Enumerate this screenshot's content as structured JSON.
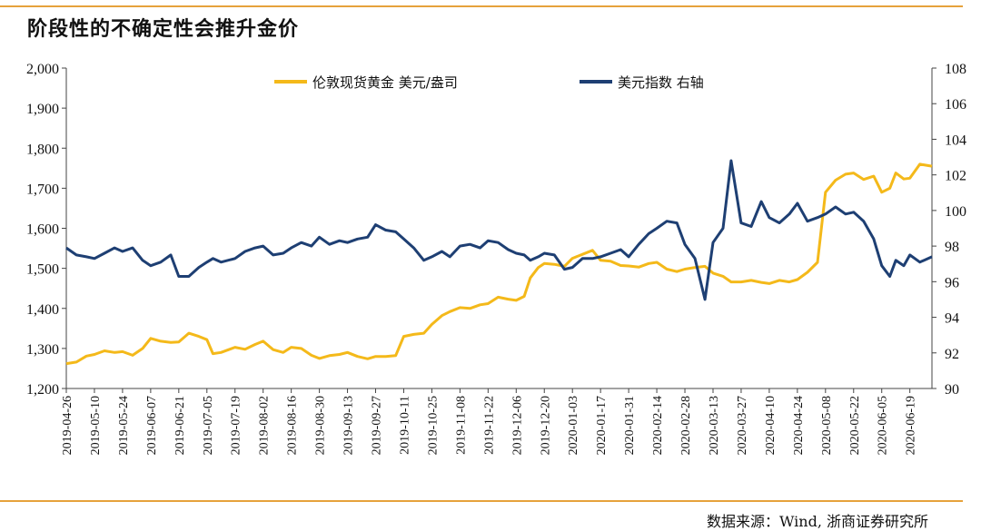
{
  "title": "阶段性的不确定性会推升金价",
  "source": "数据来源：Wind, 浙商证券研究所",
  "colors": {
    "gold": "#f4b91a",
    "usd": "#1e3f73",
    "accent": "#e6a23c"
  },
  "chart_data": {
    "type": "line",
    "grid": false,
    "legend_position": "top",
    "x_ticks": [
      "2019-04-26",
      "2019-05-10",
      "2019-05-24",
      "2019-06-07",
      "2019-06-21",
      "2019-07-05",
      "2019-07-19",
      "2019-08-02",
      "2019-08-16",
      "2019-08-30",
      "2019-09-13",
      "2019-09-27",
      "2019-10-11",
      "2019-10-25",
      "2019-11-08",
      "2019-11-22",
      "2019-12-06",
      "2019-12-20",
      "2020-01-03",
      "2020-01-17",
      "2020-01-31",
      "2020-02-14",
      "2020-02-28",
      "2020-03-13",
      "2020-03-27",
      "2020-04-10",
      "2020-04-24",
      "2020-05-08",
      "2020-05-22",
      "2020-06-05",
      "2020-06-19"
    ],
    "x_range": [
      "2019-04-26",
      "2020-06-30"
    ],
    "y_left": {
      "ylim": [
        1200,
        2000
      ],
      "ticks": [
        "1,200",
        "1,300",
        "1,400",
        "1,500",
        "1,600",
        "1,700",
        "1,800",
        "1,900",
        "2,000"
      ]
    },
    "y_right": {
      "ylim": [
        90,
        108
      ],
      "ticks": [
        "90",
        "92",
        "94",
        "96",
        "98",
        "100",
        "102",
        "104",
        "106",
        "108"
      ]
    },
    "series": [
      {
        "name": "伦敦现货黄金 美元/盎司",
        "axis": "left",
        "color": "#f4b91a",
        "points": [
          [
            "2019-04-26",
            1262
          ],
          [
            "2019-05-01",
            1266
          ],
          [
            "2019-05-06",
            1281
          ],
          [
            "2019-05-10",
            1285
          ],
          [
            "2019-05-15",
            1294
          ],
          [
            "2019-05-20",
            1290
          ],
          [
            "2019-05-24",
            1292
          ],
          [
            "2019-05-29",
            1283
          ],
          [
            "2019-06-03",
            1300
          ],
          [
            "2019-06-07",
            1325
          ],
          [
            "2019-06-12",
            1318
          ],
          [
            "2019-06-17",
            1315
          ],
          [
            "2019-06-21",
            1316
          ],
          [
            "2019-06-26",
            1338
          ],
          [
            "2019-07-01",
            1330
          ],
          [
            "2019-07-05",
            1322
          ],
          [
            "2019-07-08",
            1287
          ],
          [
            "2019-07-12",
            1290
          ],
          [
            "2019-07-19",
            1303
          ],
          [
            "2019-07-24",
            1298
          ],
          [
            "2019-07-29",
            1310
          ],
          [
            "2019-08-02",
            1318
          ],
          [
            "2019-08-07",
            1297
          ],
          [
            "2019-08-12",
            1290
          ],
          [
            "2019-08-16",
            1303
          ],
          [
            "2019-08-21",
            1300
          ],
          [
            "2019-08-26",
            1283
          ],
          [
            "2019-08-30",
            1275
          ],
          [
            "2019-09-04",
            1282
          ],
          [
            "2019-09-09",
            1285
          ],
          [
            "2019-09-13",
            1290
          ],
          [
            "2019-09-18",
            1280
          ],
          [
            "2019-09-23",
            1274
          ],
          [
            "2019-09-27",
            1280
          ],
          [
            "2019-10-02",
            1280
          ],
          [
            "2019-10-07",
            1282
          ],
          [
            "2019-10-11",
            1330
          ],
          [
            "2019-10-16",
            1335
          ],
          [
            "2019-10-21",
            1338
          ],
          [
            "2019-10-25",
            1360
          ],
          [
            "2019-10-30",
            1382
          ],
          [
            "2019-11-03",
            1392
          ],
          [
            "2019-11-08",
            1402
          ],
          [
            "2019-11-13",
            1400
          ],
          [
            "2019-11-18",
            1409
          ],
          [
            "2019-11-22",
            1412
          ],
          [
            "2019-11-27",
            1428
          ],
          [
            "2019-12-02",
            1423
          ],
          [
            "2019-12-06",
            1420
          ],
          [
            "2019-12-10",
            1430
          ],
          [
            "2019-12-13",
            1476
          ],
          [
            "2019-12-17",
            1502
          ],
          [
            "2019-12-20",
            1512
          ],
          [
            "2019-12-25",
            1510
          ],
          [
            "2019-12-30",
            1505
          ],
          [
            "2020-01-03",
            1525
          ],
          [
            "2020-01-08",
            1535
          ],
          [
            "2020-01-13",
            1545
          ],
          [
            "2020-01-17",
            1520
          ],
          [
            "2020-01-22",
            1518
          ],
          [
            "2020-01-27",
            1507
          ],
          [
            "2020-01-31",
            1506
          ],
          [
            "2020-02-05",
            1503
          ],
          [
            "2020-02-10",
            1512
          ],
          [
            "2020-02-14",
            1515
          ],
          [
            "2020-02-19",
            1498
          ],
          [
            "2020-02-24",
            1492
          ],
          [
            "2020-02-28",
            1498
          ],
          [
            "2020-03-04",
            1502
          ],
          [
            "2020-03-09",
            1505
          ],
          [
            "2020-03-13",
            1488
          ],
          [
            "2020-03-18",
            1480
          ],
          [
            "2020-03-22",
            1466
          ],
          [
            "2020-03-27",
            1466
          ],
          [
            "2020-04-01",
            1470
          ],
          [
            "2020-04-06",
            1465
          ],
          [
            "2020-04-10",
            1462
          ],
          [
            "2020-04-15",
            1470
          ],
          [
            "2020-04-20",
            1466
          ],
          [
            "2020-04-24",
            1472
          ],
          [
            "2020-04-29",
            1490
          ],
          [
            "2020-05-04",
            1515
          ],
          [
            "2020-05-08",
            1690
          ],
          [
            "2020-05-13",
            1720
          ],
          [
            "2020-05-18",
            1735
          ],
          [
            "2020-05-22",
            1738
          ],
          [
            "2020-05-27",
            1722
          ],
          [
            "2020-06-01",
            1730
          ],
          [
            "2020-06-05",
            1690
          ],
          [
            "2020-06-09",
            1700
          ],
          [
            "2020-06-12",
            1738
          ],
          [
            "2020-06-16",
            1723
          ],
          [
            "2020-06-19",
            1725
          ],
          [
            "2020-06-24",
            1760
          ],
          [
            "2020-06-30",
            1755
          ]
        ]
      },
      {
        "name": "美元指数 右轴",
        "axis": "right",
        "color": "#1e3f73",
        "points": [
          [
            "2019-04-26",
            97.9
          ],
          [
            "2019-05-01",
            97.5
          ],
          [
            "2019-05-06",
            97.4
          ],
          [
            "2019-05-10",
            97.3
          ],
          [
            "2019-05-15",
            97.6
          ],
          [
            "2019-05-20",
            97.9
          ],
          [
            "2019-05-24",
            97.7
          ],
          [
            "2019-05-29",
            97.9
          ],
          [
            "2019-06-03",
            97.2
          ],
          [
            "2019-06-07",
            96.9
          ],
          [
            "2019-06-12",
            97.1
          ],
          [
            "2019-06-17",
            97.5
          ],
          [
            "2019-06-21",
            96.3
          ],
          [
            "2019-06-26",
            96.3
          ],
          [
            "2019-07-01",
            96.8
          ],
          [
            "2019-07-05",
            97.1
          ],
          [
            "2019-07-08",
            97.3
          ],
          [
            "2019-07-12",
            97.1
          ],
          [
            "2019-07-19",
            97.3
          ],
          [
            "2019-07-24",
            97.7
          ],
          [
            "2019-07-29",
            97.9
          ],
          [
            "2019-08-02",
            98.0
          ],
          [
            "2019-08-07",
            97.5
          ],
          [
            "2019-08-12",
            97.6
          ],
          [
            "2019-08-16",
            97.9
          ],
          [
            "2019-08-21",
            98.2
          ],
          [
            "2019-08-26",
            98.0
          ],
          [
            "2019-08-30",
            98.5
          ],
          [
            "2019-09-04",
            98.1
          ],
          [
            "2019-09-09",
            98.3
          ],
          [
            "2019-09-13",
            98.2
          ],
          [
            "2019-09-18",
            98.4
          ],
          [
            "2019-09-23",
            98.5
          ],
          [
            "2019-09-27",
            99.2
          ],
          [
            "2019-10-02",
            98.9
          ],
          [
            "2019-10-07",
            98.8
          ],
          [
            "2019-10-11",
            98.4
          ],
          [
            "2019-10-16",
            97.9
          ],
          [
            "2019-10-21",
            97.2
          ],
          [
            "2019-10-25",
            97.4
          ],
          [
            "2019-10-30",
            97.7
          ],
          [
            "2019-11-03",
            97.4
          ],
          [
            "2019-11-08",
            98.0
          ],
          [
            "2019-11-13",
            98.1
          ],
          [
            "2019-11-18",
            97.9
          ],
          [
            "2019-11-22",
            98.3
          ],
          [
            "2019-11-27",
            98.2
          ],
          [
            "2019-12-02",
            97.8
          ],
          [
            "2019-12-06",
            97.6
          ],
          [
            "2019-12-10",
            97.5
          ],
          [
            "2019-12-13",
            97.2
          ],
          [
            "2019-12-17",
            97.4
          ],
          [
            "2019-12-20",
            97.6
          ],
          [
            "2019-12-25",
            97.5
          ],
          [
            "2019-12-30",
            96.7
          ],
          [
            "2020-01-03",
            96.8
          ],
          [
            "2020-01-08",
            97.3
          ],
          [
            "2020-01-13",
            97.3
          ],
          [
            "2020-01-17",
            97.4
          ],
          [
            "2020-01-22",
            97.6
          ],
          [
            "2020-01-27",
            97.8
          ],
          [
            "2020-01-31",
            97.4
          ],
          [
            "2020-02-05",
            98.1
          ],
          [
            "2020-02-10",
            98.7
          ],
          [
            "2020-02-14",
            99.0
          ],
          [
            "2020-02-19",
            99.4
          ],
          [
            "2020-02-24",
            99.3
          ],
          [
            "2020-02-28",
            98.1
          ],
          [
            "2020-03-04",
            97.3
          ],
          [
            "2020-03-09",
            95.0
          ],
          [
            "2020-03-13",
            98.2
          ],
          [
            "2020-03-18",
            99.0
          ],
          [
            "2020-03-22",
            102.8
          ],
          [
            "2020-03-27",
            99.3
          ],
          [
            "2020-04-01",
            99.1
          ],
          [
            "2020-04-06",
            100.5
          ],
          [
            "2020-04-10",
            99.6
          ],
          [
            "2020-04-15",
            99.3
          ],
          [
            "2020-04-20",
            99.8
          ],
          [
            "2020-04-24",
            100.4
          ],
          [
            "2020-04-29",
            99.4
          ],
          [
            "2020-05-04",
            99.6
          ],
          [
            "2020-05-08",
            99.8
          ],
          [
            "2020-05-13",
            100.2
          ],
          [
            "2020-05-18",
            99.8
          ],
          [
            "2020-05-22",
            99.9
          ],
          [
            "2020-05-27",
            99.4
          ],
          [
            "2020-06-01",
            98.4
          ],
          [
            "2020-06-05",
            96.9
          ],
          [
            "2020-06-09",
            96.3
          ],
          [
            "2020-06-12",
            97.2
          ],
          [
            "2020-06-16",
            96.9
          ],
          [
            "2020-06-19",
            97.5
          ],
          [
            "2020-06-24",
            97.1
          ],
          [
            "2020-06-30",
            97.4
          ]
        ]
      }
    ]
  }
}
